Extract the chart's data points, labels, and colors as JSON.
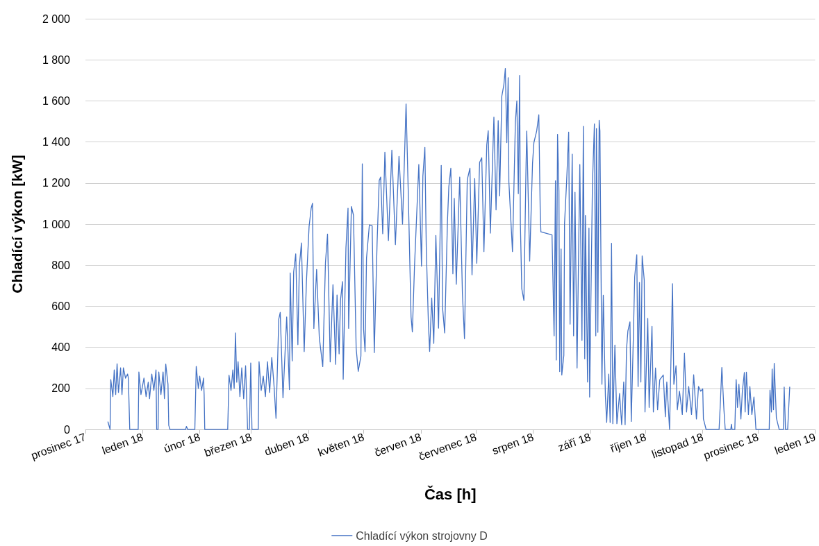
{
  "chart_data": {
    "type": "line",
    "xlabel": "Čas [h]",
    "ylabel": "Chladící výkon [kW]",
    "xlim": [
      "2017-12-01",
      "2019-01-01"
    ],
    "xticks": [
      {
        "value": "2017-12-01",
        "label": "prosinec 17"
      },
      {
        "value": "2018-01-01",
        "label": "leden 18"
      },
      {
        "value": "2018-02-01",
        "label": "únor 18"
      },
      {
        "value": "2018-03-01",
        "label": "březen 18"
      },
      {
        "value": "2018-04-01",
        "label": "duben 18"
      },
      {
        "value": "2018-05-01",
        "label": "květen 18"
      },
      {
        "value": "2018-06-01",
        "label": "červen 18"
      },
      {
        "value": "2018-07-01",
        "label": "červenec 18"
      },
      {
        "value": "2018-08-01",
        "label": "srpen 18"
      },
      {
        "value": "2018-09-01",
        "label": "září 18"
      },
      {
        "value": "2018-10-01",
        "label": "říjen 18"
      },
      {
        "value": "2018-11-01",
        "label": "listopad 18"
      },
      {
        "value": "2018-12-01",
        "label": "prosinec 18"
      },
      {
        "value": "2019-01-01",
        "label": "leden 19"
      }
    ],
    "ylim": [
      0,
      2000
    ],
    "yticks": [
      0,
      200,
      400,
      600,
      800,
      {
        "value": 1000,
        "label": "1 000"
      },
      {
        "value": 1200,
        "label": "1 200"
      },
      {
        "value": 1400,
        "label": "1 400"
      },
      {
        "value": 1600,
        "label": "1 600"
      },
      {
        "value": 1800,
        "label": "1 800"
      },
      {
        "value": 2000,
        "label": "2 000"
      }
    ],
    "grid": "y",
    "legend": "bottom",
    "marker": "none",
    "line_style": "solid",
    "series": [
      {
        "name": "Chladící výkon strojovny D",
        "color": "#4472c4",
        "x": [
          "2017-12-13T05:00",
          "2017-12-14T09:00",
          "2017-12-14T18:00",
          "2017-12-15T21:00",
          "2017-12-16T15:00",
          "2017-12-17T10:00",
          "2017-12-18T04:00",
          "2017-12-18T22:00",
          "2017-12-20T02:00",
          "2017-12-20T20:00",
          "2017-12-21T14:00",
          "2017-12-22T18:00",
          "2017-12-23T21:00",
          "2017-12-24T07:00",
          "2017-12-25T01:00",
          "2017-12-29T15:00",
          "2017-12-30T00:00",
          "2017-12-31T03:00",
          "2018-01-01T18:00",
          "2018-01-02T22:00",
          "2018-01-04T02:00",
          "2018-01-04T19:00",
          "2018-01-06T00:00",
          "2018-01-07T03:00",
          "2018-01-08T07:00",
          "2018-01-08T16:00",
          "2018-01-09T10:00",
          "2018-01-09T19:00",
          "2018-01-10T23:00",
          "2018-01-12T03:00",
          "2018-01-12T21:00",
          "2018-01-13T14:00",
          "2018-01-14T19:00",
          "2018-01-15T05:00",
          "2018-01-15T22:00",
          "2018-01-24T09:00",
          "2018-01-24T19:00",
          "2018-01-25T12:00",
          "2018-01-29T09:00",
          "2018-01-30T03:00",
          "2018-01-31T06:00",
          "2018-02-01T00:00",
          "2018-02-02T01:00",
          "2018-02-03T02:00",
          "2018-02-03T10:00",
          "2018-02-03T18:00",
          "2018-02-16T05:00",
          "2018-02-16T22:00",
          "2018-02-18T00:00",
          "2018-02-19T00:00",
          "2018-02-19T17:00",
          "2018-02-20T10:00",
          "2018-02-21T03:00",
          "2018-02-21T20:00",
          "2018-02-22T20:00",
          "2018-02-23T20:00",
          "2018-02-24T21:00",
          "2018-02-25T22:00",
          "2018-02-27T00:00",
          "2018-02-28T00:00",
          "2018-02-28T17:00",
          "2018-03-01T09:00",
          "2018-03-04T19:00",
          "2018-03-05T05:00",
          "2018-03-06T09:00",
          "2018-03-07T12:00",
          "2018-03-08T16:00",
          "2018-03-09T19:00",
          "2018-03-10T23:00",
          "2018-03-12T03:00",
          "2018-03-13T07:00",
          "2018-03-14T10:00",
          "2018-03-15T22:00",
          "2018-03-16T17:00",
          "2018-03-18T05:00",
          "2018-03-20T05:00",
          "2018-03-21T17:00",
          "2018-03-22T03:00",
          "2018-03-23T05:00",
          "2018-03-24T00:00",
          "2018-03-25T03:00",
          "2018-03-26T07:00",
          "2018-03-27T02:00",
          "2018-03-28T05:00",
          "2018-03-29T17:00",
          "2018-03-30T22:00",
          "2018-04-01T09:00",
          "2018-04-02T12:00",
          "2018-04-03T05:00",
          "2018-04-03T23:00",
          "2018-04-05T11:00",
          "2018-04-06T22:00",
          "2018-04-08T19:00",
          "2018-04-10T06:00",
          "2018-04-11T09:00",
          "2018-04-12T20:00",
          "2018-04-14T08:00",
          "2018-04-15T19:00",
          "2018-04-16T13:00",
          "2018-04-17T16:00",
          "2018-04-18T10:00",
          "2018-04-19T12:00",
          "2018-04-19T21:00",
          "2018-04-21T09:00",
          "2018-04-22T12:00",
          "2018-04-22T20:00",
          "2018-04-24T08:00",
          "2018-04-25T11:00",
          "2018-04-26T22:00",
          "2018-04-28T01:00",
          "2018-04-29T12:00",
          "2018-04-30T06:00",
          "2018-04-30T23:00",
          "2018-05-01T18:00",
          "2018-05-02T13:00",
          "2018-05-04T02:00",
          "2018-05-05T14:00",
          "2018-05-06T18:00",
          "2018-05-08T07:00",
          "2018-05-09T10:00",
          "2018-05-10T05:00",
          "2018-05-11T08:00",
          "2018-05-12T12:00",
          "2018-05-14T10:00",
          "2018-05-16T07:00",
          "2018-05-18T05:00",
          "2018-05-20T04:00",
          "2018-05-22T02:00",
          "2018-05-24T00:00",
          "2018-05-25T03:00",
          "2018-05-26T17:00",
          "2018-05-27T10:00",
          "2018-05-28T14:00",
          "2018-05-30T22:00",
          "2018-06-01T09:00",
          "2018-06-02T03:00",
          "2018-06-03T05:00",
          "2018-06-03T23:00",
          "2018-06-05T02:00",
          "2018-06-05T19:00",
          "2018-06-06T22:00",
          "2018-06-08T01:00",
          "2018-06-09T04:00",
          "2018-06-10T15:00",
          "2018-06-12T02:00",
          "2018-06-12T20:00",
          "2018-06-13T23:00",
          "2018-06-15T11:00",
          "2018-06-16T05:00",
          "2018-06-17T07:00",
          "2018-06-18T10:00",
          "2018-06-19T04:00",
          "2018-06-20T06:00",
          "2018-06-22T03:00",
          "2018-06-23T14:00",
          "2018-06-24T17:00",
          "2018-06-26T05:00",
          "2018-06-27T16:00",
          "2018-06-28T19:00",
          "2018-06-30T06:00",
          "2018-07-01T09:00",
          "2018-07-02T22:00",
          "2018-07-04T02:00",
          "2018-07-05T06:00",
          "2018-07-06T19:00",
          "2018-07-07T14:00",
          "2018-07-08T18:00",
          "2018-07-10T16:00",
          "2018-07-11T20:00",
          "2018-07-13T00:00",
          "2018-07-13T19:00",
          "2018-07-14T23:00",
          "2018-07-16T02:00",
          "2018-07-16T21:00",
          "2018-07-17T16:00",
          "2018-07-18T10:00",
          "2018-07-18T19:00",
          "2018-07-20T18:00",
          "2018-07-22T08:00",
          "2018-07-23T03:00",
          "2018-07-23T22:00",
          "2018-07-24T15:00",
          "2018-07-25T01:00",
          "2018-07-25T19:00",
          "2018-07-26T23:00",
          "2018-07-28T03:00",
          "2018-07-28T12:00",
          "2018-07-30T02:00",
          "2018-07-31T15:00",
          "2018-08-01T09:00",
          "2018-08-02T21:00",
          "2018-08-04T01:00",
          "2018-08-04T19:00",
          "2018-08-05T04:00",
          "2018-08-11T05:00",
          "2018-08-12T08:00",
          "2018-08-13T02:00",
          "2018-08-13T12:00",
          "2018-08-14T05:00",
          "2018-08-14T23:00",
          "2018-08-15T09:00",
          "2018-08-16T03:00",
          "2018-08-16T12:00",
          "2018-08-17T15:00",
          "2018-08-18T00:00",
          "2018-08-19T03:00",
          "2018-08-20T06:00",
          "2018-08-21T00:00",
          "2018-08-22T04:00",
          "2018-08-22T22:00",
          "2018-08-23T16:00",
          "2018-08-24T19:00",
          "2018-08-26T07:00",
          "2018-08-27T11:00",
          "2018-08-28T05:00",
          "2018-08-28T23:00",
          "2018-08-29T08:00",
          "2018-08-30T12:00",
          "2018-08-31T06:00",
          "2018-08-31T15:00",
          "2018-09-02T03:00",
          "2018-09-03T05:00",
          "2018-09-03T23:00",
          "2018-09-04T08:00",
          "2018-09-05T02:00",
          "2018-09-05T19:00",
          "2018-09-06T05:00",
          "2018-09-07T07:00",
          "2018-09-08T01:00",
          "2018-09-09T04:00",
          "2018-09-09T21:00",
          "2018-09-11T00:00",
          "2018-09-11T18:00",
          "2018-09-12T12:00",
          "2018-09-13T05:00",
          "2018-09-14T08:00",
          "2018-09-15T10:00",
          "2018-09-16T21:00",
          "2018-09-18T00:00",
          "2018-09-19T03:00",
          "2018-09-19T21:00",
          "2018-09-20T15:00",
          "2018-09-21T09:00",
          "2018-09-22T12:00",
          "2018-09-23T05:00",
          "2018-09-24T08:00",
          "2018-09-25T02:00",
          "2018-09-26T05:00",
          "2018-09-26T22:00",
          "2018-09-27T16:00",
          "2018-09-28T10:00",
          "2018-09-29T03:00",
          "2018-09-30T06:00",
          "2018-09-30T16:00",
          "2018-10-02T04:00",
          "2018-10-02T22:00",
          "2018-10-04T11:00",
          "2018-10-05T05:00",
          "2018-10-06T09:00",
          "2018-10-07T12:00",
          "2018-10-08T16:00",
          "2018-10-10T14:00",
          "2018-10-11T17:00",
          "2018-10-12T12:00",
          "2018-10-14T00:00",
          "2018-10-15T14:00",
          "2018-10-16T08:00",
          "2018-10-17T12:00",
          "2018-10-18T05:00",
          "2018-10-19T09:00",
          "2018-10-20T22:00",
          "2018-10-22T02:00",
          "2018-10-23T05:00",
          "2018-10-24T09:00",
          "2018-10-25T22:00",
          "2018-10-27T02:00",
          "2018-10-28T14:00",
          "2018-10-29T17:00",
          "2018-10-30T22:00",
          "2018-11-01T00:00",
          "2018-11-01T09:00",
          "2018-11-02T20:00",
          "2018-11-09T21:00",
          "2018-11-10T15:00",
          "2018-11-11T09:00",
          "2018-11-12T12:00",
          "2018-11-13T05:00",
          "2018-11-16T05:00",
          "2018-11-16T14:00",
          "2018-11-16T22:00",
          "2018-11-18T10:00",
          "2018-11-19T03:00",
          "2018-11-19T21:00",
          "2018-11-20T15:00",
          "2018-11-21T17:00",
          "2018-11-22T12:00",
          "2018-11-23T14:00",
          "2018-11-24T00:00",
          "2018-11-24T17:00",
          "2018-11-25T19:00",
          "2018-11-26T14:00",
          "2018-11-27T16:00",
          "2018-11-28T19:00",
          "2018-11-29T21:00",
          "2018-12-07T02:00",
          "2018-12-07T12:00",
          "2018-12-08T07:00",
          "2018-12-08T16:00",
          "2018-12-09T10:00",
          "2018-12-09T19:00",
          "2018-12-10T23:00",
          "2018-12-11T17:00",
          "2018-12-12T12:00",
          "2018-12-14T19:00",
          "2018-12-15T05:00",
          "2018-12-15T22:00",
          "2018-12-17T02:00",
          "2018-12-18T05:00"
        ],
        "values": [
          37,
          0,
          243,
          160,
          290,
          170,
          320,
          180,
          300,
          170,
          300,
          250,
          270,
          250,
          0,
          0,
          280,
          170,
          250,
          160,
          230,
          150,
          270,
          190,
          290,
          0,
          0,
          280,
          170,
          280,
          150,
          318,
          220,
          20,
          0,
          0,
          15,
          0,
          0,
          307,
          200,
          260,
          190,
          250,
          170,
          0,
          0,
          264,
          190,
          290,
          200,
          470,
          230,
          330,
          160,
          300,
          150,
          310,
          0,
          0,
          324,
          0,
          0,
          330,
          190,
          260,
          160,
          330,
          180,
          350,
          220,
          54,
          537,
          570,
          154,
          548,
          194,
          762,
          334,
          767,
          855,
          413,
          795,
          908,
          379,
          717,
          989,
          1077,
          1101,
          492,
          779,
          447,
          306,
          812,
          951,
          329,
          705,
          317,
          655,
          368,
          630,
          720,
          244,
          885,
          1077,
          492,
          1086,
          1043,
          396,
          283,
          357,
          1293,
          486,
          379,
          835,
          996,
          992,
          374,
          914,
          1212,
          1229,
          953,
          1350,
          920,
          1360,
          900,
          1330,
          1000,
          1585,
          1178,
          548,
          475,
          795,
          1290,
          795,
          1234,
          1374,
          888,
          527,
          380,
          640,
          419,
          945,
          493,
          1286,
          589,
          470,
          1012,
          1182,
          1272,
          758,
          1125,
          707,
          1229,
          662,
          442,
          1216,
          1272,
          753,
          1222,
          809,
          1301,
          1323,
          866,
          1385,
          1455,
          956,
          1521,
          1069,
          1504,
          1137,
          1623,
          1679,
          1758,
          1397,
          1713,
          1205,
          866,
          1498,
          1600,
          1148,
          1724,
          1001,
          685,
          628,
          1295,
          1453,
          820,
          1295,
          1397,
          1453,
          1532,
          1069,
          962,
          947,
          456,
          1211,
          338,
          1437,
          1161,
          282,
          879,
          265,
          361,
          1003,
          1206,
          1448,
          513,
          1341,
          456,
          1155,
          299,
          1290,
          434,
          1476,
          344,
          1042,
          231,
          980,
          158,
          1189,
          1488,
          456,
          1465,
          473,
          1505,
          1454,
          220,
          654,
          163,
          34,
          270,
          34,
          907,
          28,
          411,
          28,
          175,
          23,
          231,
          23,
          389,
          479,
          524,
          39,
          445,
          744,
          851,
          209,
          716,
          231,
          845,
          727,
          85,
          541,
          107,
          502,
          85,
          299,
          96,
          242,
          265,
          62,
          231,
          0,
          710,
          220,
          310,
          96,
          186,
          73,
          371,
          85,
          209,
          73,
          266,
          51,
          209,
          186,
          198,
          51,
          0,
          0,
          141,
          302,
          96,
          0,
          0,
          26,
          0,
          0,
          243,
          107,
          220,
          51,
          186,
          277,
          85,
          279,
          73,
          209,
          73,
          158,
          0,
          0,
          192,
          85,
          294,
          96,
          322,
          56,
          28,
          0,
          0,
          206,
          0,
          0,
          206
        ]
      }
    ]
  }
}
